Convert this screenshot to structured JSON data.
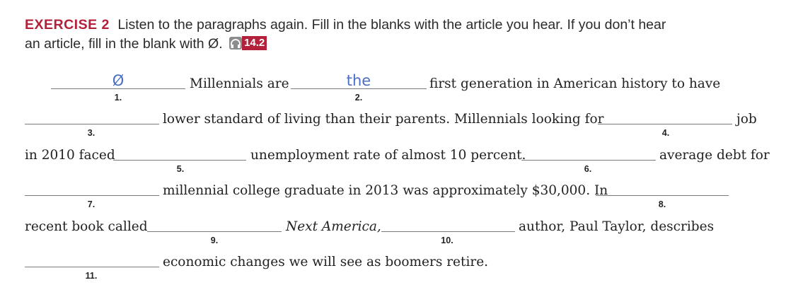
{
  "header": {
    "exercise_label": "EXERCISE 2",
    "instructions_line1": "Listen to the paragraphs again. Fill in the blanks with the article you hear. If you don’t hear",
    "instructions_line2": "an article, fill in the blank with Ø.",
    "audio_track": "14.2"
  },
  "text": {
    "seg1": "Millennials are",
    "seg2": "first generation in American history to have",
    "seg3": "lower standard of living than their parents. Millennials looking for",
    "seg4": "job",
    "seg5": "in 2010 faced",
    "seg6": "unemployment rate of almost 10 percent.",
    "seg7": "average debt for",
    "seg8": "millennial college graduate in 2013 was approximately $30,000. In",
    "seg9": "recent book called",
    "seg10": "Next America,",
    "seg11": "author, Paul Taylor, describes",
    "seg12": "economic changes we will see as boomers retire."
  },
  "blanks": [
    {
      "number": "1.",
      "answer": "Ø"
    },
    {
      "number": "2.",
      "answer": "the"
    },
    {
      "number": "3.",
      "answer": ""
    },
    {
      "number": "4.",
      "answer": ""
    },
    {
      "number": "5.",
      "answer": ""
    },
    {
      "number": "6.",
      "answer": ""
    },
    {
      "number": "7.",
      "answer": ""
    },
    {
      "number": "8.",
      "answer": ""
    },
    {
      "number": "9.",
      "answer": ""
    },
    {
      "number": "10.",
      "answer": ""
    },
    {
      "number": "11.",
      "answer": ""
    }
  ],
  "colors": {
    "accent": "#b3203a",
    "handwriting": "#4a6fc4"
  },
  "icons": {
    "audio": "headphones-icon"
  }
}
